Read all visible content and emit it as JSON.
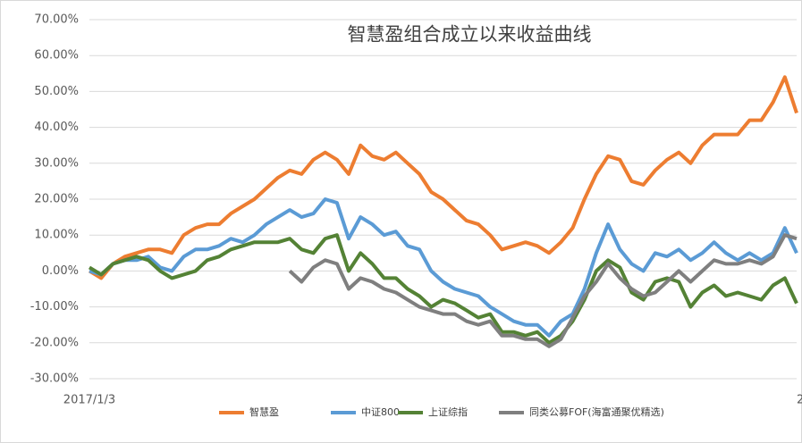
{
  "chart_data": {
    "type": "line",
    "title": "智慧盈组合成立以来收益曲线",
    "categories": [
      "2017/1/3",
      null,
      null,
      null,
      null,
      null,
      null,
      null,
      null,
      null,
      null,
      null,
      null,
      null,
      null,
      null,
      null,
      null,
      null,
      null,
      null,
      null,
      null,
      null,
      null,
      null,
      null,
      null,
      null,
      null,
      null,
      null,
      null,
      null,
      null,
      null,
      null,
      null,
      null,
      null,
      null,
      null,
      null,
      null,
      null,
      null,
      null,
      null,
      null,
      null,
      null,
      null,
      null,
      null,
      null,
      null,
      null,
      null,
      null,
      null,
      "2"
    ],
    "ylim": [
      -30,
      70
    ],
    "yticks": [
      {
        "value": -30,
        "label": "-30.00%"
      },
      {
        "value": -20,
        "label": "-20.00%"
      },
      {
        "value": -10,
        "label": "-10.00%"
      },
      {
        "value": 0,
        "label": "0.00%"
      },
      {
        "value": 10,
        "label": "10.00%"
      },
      {
        "value": 20,
        "label": "20.00%"
      },
      {
        "value": 30,
        "label": "30.00%"
      },
      {
        "value": 40,
        "label": "40.00%"
      },
      {
        "value": 50,
        "label": "50.00%"
      },
      {
        "value": 60,
        "label": "60.00%"
      },
      {
        "value": 70,
        "label": "70.00%"
      }
    ],
    "grid": true,
    "series": [
      {
        "name": "智慧盈",
        "color": "#ed7d31",
        "values": [
          0,
          -2,
          2,
          4,
          5,
          6,
          6,
          5,
          10,
          12,
          13,
          13,
          16,
          18,
          20,
          23,
          26,
          28,
          27,
          31,
          33,
          31,
          27,
          35,
          32,
          31,
          33,
          30,
          27,
          22,
          20,
          17,
          14,
          13,
          10,
          6,
          7,
          8,
          7,
          5,
          8,
          12,
          20,
          27,
          32,
          31,
          25,
          24,
          28,
          31,
          33,
          30,
          35,
          38,
          38,
          38,
          42,
          42,
          47,
          54,
          44
        ]
      },
      {
        "name": "中证800",
        "color": "#5b9bd5",
        "values": [
          0,
          -1,
          2,
          3,
          3,
          4,
          1,
          0,
          4,
          6,
          6,
          7,
          9,
          8,
          10,
          13,
          15,
          17,
          15,
          16,
          20,
          19,
          9,
          15,
          13,
          10,
          11,
          7,
          6,
          0,
          -3,
          -5,
          -6,
          -7,
          -10,
          -12,
          -14,
          -15,
          -15,
          -18,
          -14,
          -12,
          -5,
          5,
          13,
          6,
          2,
          0,
          5,
          4,
          6,
          3,
          5,
          8,
          5,
          3,
          5,
          3,
          5,
          12,
          5
        ]
      },
      {
        "name": "上证综指",
        "color": "#548235",
        "values": [
          1,
          -1,
          2,
          3,
          4,
          3,
          0,
          -2,
          -1,
          0,
          3,
          4,
          6,
          7,
          8,
          8,
          8,
          9,
          6,
          5,
          9,
          10,
          0,
          5,
          2,
          -2,
          -2,
          -5,
          -7,
          -10,
          -8,
          -9,
          -11,
          -13,
          -12,
          -17,
          -17,
          -18,
          -17,
          -20,
          -18,
          -14,
          -8,
          0,
          3,
          1,
          -6,
          -8,
          -3,
          -2,
          -3,
          -10,
          -6,
          -4,
          -7,
          -6,
          -7,
          -8,
          -4,
          -2,
          -9
        ]
      },
      {
        "name": "同类公募FOF(海富通聚优精选)",
        "color": "#7f7f7f",
        "values": [
          null,
          null,
          null,
          null,
          null,
          null,
          null,
          null,
          null,
          null,
          null,
          null,
          null,
          null,
          null,
          null,
          null,
          0,
          -3,
          1,
          3,
          2,
          -5,
          -2,
          -3,
          -5,
          -6,
          -8,
          -10,
          -11,
          -12,
          -12,
          -14,
          -15,
          -14,
          -18,
          -18,
          -19,
          -19,
          -21,
          -19,
          -13,
          -7,
          -3,
          2,
          -2,
          -5,
          -7,
          -6,
          -3,
          0,
          -3,
          0,
          3,
          2,
          2,
          3,
          2,
          4,
          10,
          9
        ]
      }
    ]
  }
}
